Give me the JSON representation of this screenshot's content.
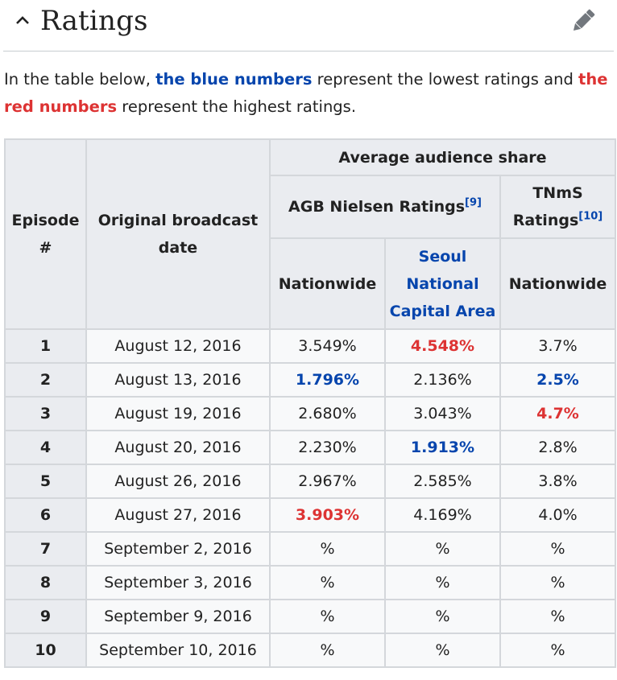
{
  "section": {
    "title": "Ratings",
    "caret_icon": "chevron-up-icon",
    "edit_icon": "pencil-icon"
  },
  "intro": {
    "before": "In the table below, ",
    "blue_phrase": "the blue numbers",
    "middle": " represent the lowest ratings and ",
    "red_phrase": "the red numbers",
    "after": " represent the highest ratings."
  },
  "colors": {
    "highest": "#dd3333",
    "lowest": "#0645ad"
  },
  "table": {
    "headers": {
      "episode": "Episode #",
      "date": "Original broadcast date",
      "average_share": "Average audience share",
      "agb": "AGB Nielsen Ratings",
      "agb_ref": "[9]",
      "tnms": "TNmS Ratings",
      "tnms_ref": "[10]",
      "agb_nationwide": "Nationwide",
      "agb_seoul": "Seoul National Capital Area",
      "tnms_nationwide": "Nationwide"
    },
    "rows": [
      {
        "ep": "1",
        "date": "August 12, 2016",
        "agb_nat": "3.549%",
        "agb_seoul": "4.548%",
        "tnms_nat": "3.7%"
      },
      {
        "ep": "2",
        "date": "August 13, 2016",
        "agb_nat": "1.796%",
        "agb_seoul": "2.136%",
        "tnms_nat": "2.5%"
      },
      {
        "ep": "3",
        "date": "August 19, 2016",
        "agb_nat": "2.680%",
        "agb_seoul": "3.043%",
        "tnms_nat": "4.7%"
      },
      {
        "ep": "4",
        "date": "August 20, 2016",
        "agb_nat": "2.230%",
        "agb_seoul": "1.913%",
        "tnms_nat": "2.8%"
      },
      {
        "ep": "5",
        "date": "August 26, 2016",
        "agb_nat": "2.967%",
        "agb_seoul": "2.585%",
        "tnms_nat": "3.8%"
      },
      {
        "ep": "6",
        "date": "August 27, 2016",
        "agb_nat": "3.903%",
        "agb_seoul": "4.169%",
        "tnms_nat": "4.0%"
      },
      {
        "ep": "7",
        "date": "September 2, 2016",
        "agb_nat": "%",
        "agb_seoul": "%",
        "tnms_nat": "%"
      },
      {
        "ep": "8",
        "date": "September 3, 2016",
        "agb_nat": "%",
        "agb_seoul": "%",
        "tnms_nat": "%"
      },
      {
        "ep": "9",
        "date": "September 9, 2016",
        "agb_nat": "%",
        "agb_seoul": "%",
        "tnms_nat": "%"
      },
      {
        "ep": "10",
        "date": "September 10, 2016",
        "agb_nat": "%",
        "agb_seoul": "%",
        "tnms_nat": "%"
      }
    ]
  }
}
